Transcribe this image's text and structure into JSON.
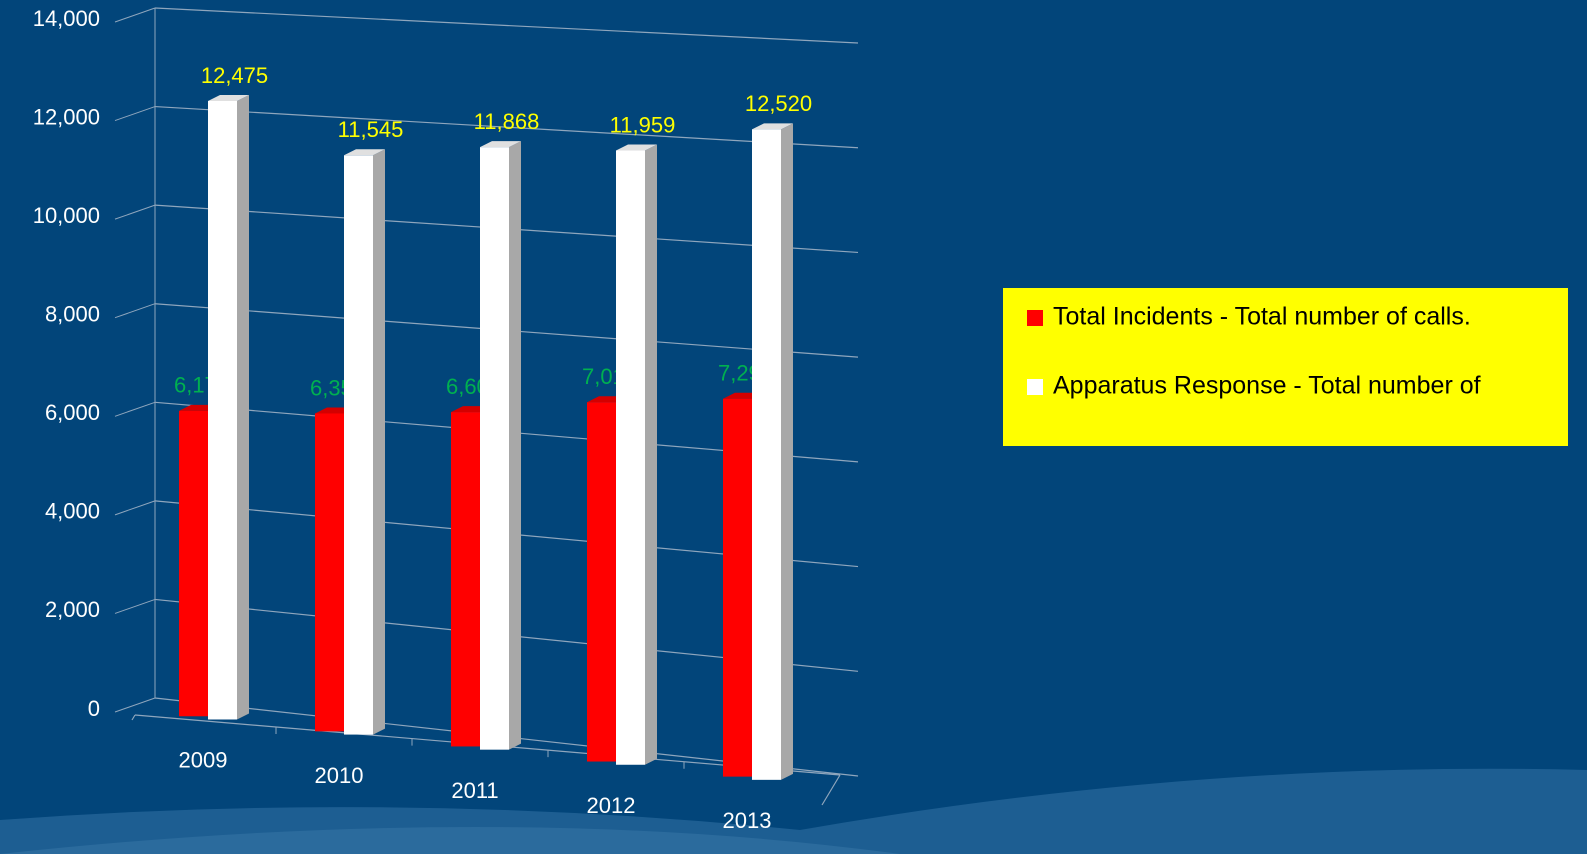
{
  "chart_data": {
    "type": "bar3d",
    "categories": [
      "2009",
      "2010",
      "2011",
      "2012",
      "2013"
    ],
    "series": [
      {
        "name": "Total Incidents - Total number of calls.",
        "color": "#ff0000",
        "label_color": "#00b050",
        "values": [
          6176,
          6352,
          6602,
          7013,
          7291
        ],
        "value_labels": [
          "6,176",
          "6,352",
          "6,602",
          "7,013",
          "7,291"
        ]
      },
      {
        "name": "Apparatus Response - Total number of",
        "color": "#ffffff",
        "label_color": "#ffff00",
        "values": [
          12475,
          11545,
          11868,
          11959,
          12520
        ],
        "value_labels": [
          "12,475",
          "11,545",
          "11,868",
          "11,959",
          "12,520"
        ]
      }
    ],
    "ylim": [
      0,
      14000
    ],
    "yticks": [
      0,
      {
        "value": 2000,
        "label": "2,000"
      },
      {
        "value": 4000,
        "label": "4,000"
      },
      {
        "value": 6000,
        "label": "6,000"
      },
      {
        "value": 8000,
        "label": "8,000"
      },
      {
        "value": 10000,
        "label": "10,000"
      },
      {
        "value": 12000,
        "label": "12,000"
      },
      {
        "value": 14000,
        "label": "14,000"
      }
    ],
    "grid": true,
    "legend_position": "right",
    "legend_background": "#ffff00"
  }
}
